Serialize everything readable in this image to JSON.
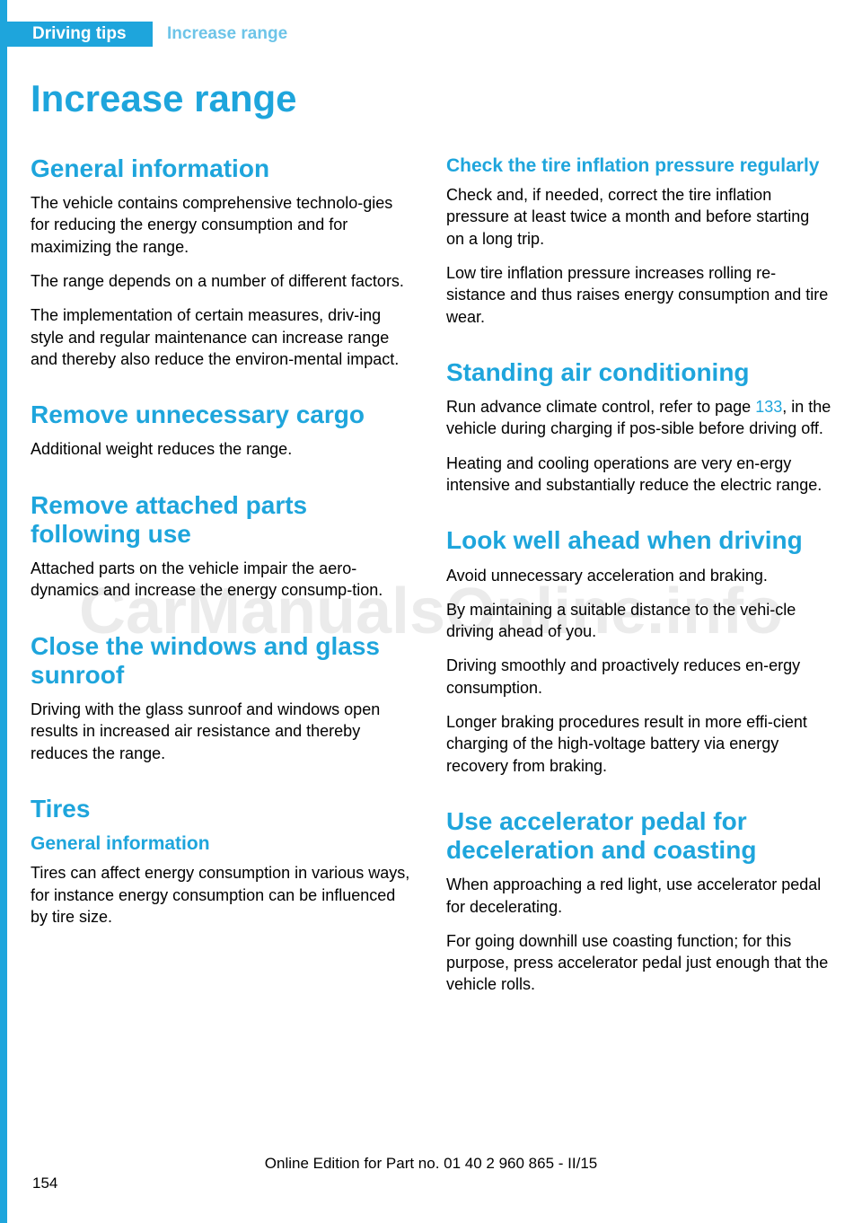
{
  "header": {
    "section": "Driving tips",
    "chapter": "Increase range"
  },
  "page_title": "Increase range",
  "left_column": {
    "general_info": {
      "heading": "General information",
      "p1": "The vehicle contains comprehensive technolo‐gies for reducing the energy consumption and for maximizing the range.",
      "p2": "The range depends on a number of different factors.",
      "p3": "The implementation of certain measures, driv‐ing style and regular maintenance can increase range and thereby also reduce the environ‐mental impact."
    },
    "remove_cargo": {
      "heading": "Remove unnecessary cargo",
      "p1": "Additional weight reduces the range."
    },
    "remove_parts": {
      "heading": "Remove attached parts following use",
      "p1": "Attached parts on the vehicle impair the aero‐dynamics and increase the energy consump‐tion."
    },
    "close_windows": {
      "heading": "Close the windows and glass sunroof",
      "p1": "Driving with the glass sunroof and windows open results in increased air resistance and thereby reduces the range."
    },
    "tires": {
      "heading": "Tires",
      "sub": "General information",
      "p1": "Tires can affect energy consumption in various ways, for instance energy consumption can be influenced by tire size."
    }
  },
  "right_column": {
    "check_tire": {
      "heading": "Check the tire inflation pressure regularly",
      "p1": "Check and, if needed, correct the tire inflation pressure at least twice a month and before starting on a long trip.",
      "p2": "Low tire inflation pressure increases rolling re‐sistance and thus raises energy consumption and tire wear."
    },
    "standing_ac": {
      "heading": "Standing air conditioning",
      "p1_pre": "Run advance climate control, refer to page ",
      "p1_link": "133",
      "p1_post": ", in the vehicle during charging if pos‐sible before driving off.",
      "p2": "Heating and cooling operations are very en‐ergy intensive and substantially reduce the electric range."
    },
    "look_ahead": {
      "heading": "Look well ahead when driving",
      "p1": "Avoid unnecessary acceleration and braking.",
      "p2": "By maintaining a suitable distance to the vehi‐cle driving ahead of you.",
      "p3": "Driving smoothly and proactively reduces en‐ergy consumption.",
      "p4": "Longer braking procedures result in more effi‐cient charging of the high-voltage battery via energy recovery from braking."
    },
    "accelerator": {
      "heading": "Use accelerator pedal for deceleration and coasting",
      "p1": "When approaching a red light, use accelerator pedal for decelerating.",
      "p2": "For going downhill use coasting function; for this purpose, press accelerator pedal just enough that the vehicle rolls."
    }
  },
  "page_number": "154",
  "footer": "Online Edition for Part no. 01 40 2 960 865 - II/15",
  "watermark": "CarManualsOnline.info",
  "colors": {
    "accent": "#1ea5dc",
    "accent_light": "#6dc4e8",
    "text": "#000000",
    "background": "#ffffff"
  }
}
